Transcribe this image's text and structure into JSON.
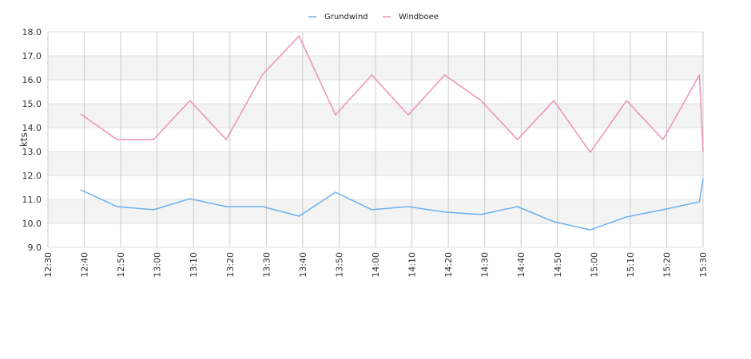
{
  "chart_data": {
    "type": "line",
    "ylabel": "kts",
    "ylim": [
      9,
      18
    ],
    "y_ticks": [
      "9.0",
      "10.0",
      "11.0",
      "12.0",
      "13.0",
      "14.0",
      "15.0",
      "16.0",
      "17.0",
      "18.0"
    ],
    "x_ticks": [
      "12:30",
      "12:40",
      "12:50",
      "13:00",
      "13:10",
      "13:20",
      "13:30",
      "13:40",
      "13:50",
      "14:00",
      "14:10",
      "14:20",
      "14:30",
      "14:40",
      "14:50",
      "15:00",
      "15:10",
      "15:20",
      "15:30"
    ],
    "x_range": [
      "12:30",
      "15:30"
    ],
    "grid": true,
    "banded_background": true,
    "legend_position": "top-center",
    "series": [
      {
        "name": "Grundwind",
        "color": "#6ab0ee",
        "x": [
          "12:39",
          "12:49",
          "12:59",
          "13:09",
          "13:19",
          "13:29",
          "13:39",
          "13:49",
          "13:59",
          "14:09",
          "14:19",
          "14:29",
          "14:39",
          "14:49",
          "14:59",
          "15:09",
          "15:19",
          "15:29",
          "15:30"
        ],
        "values": [
          11.4,
          10.7,
          10.57,
          11.03,
          10.7,
          10.7,
          10.3,
          11.3,
          10.57,
          10.7,
          10.47,
          10.37,
          10.7,
          10.07,
          9.73,
          10.27,
          10.57,
          10.9,
          11.87
        ]
      },
      {
        "name": "Windboee",
        "color": "#ee8fbb",
        "x": [
          "12:39",
          "12:49",
          "12:59",
          "13:09",
          "13:19",
          "13:29",
          "13:39",
          "13:49",
          "13:59",
          "14:09",
          "14:19",
          "14:29",
          "14:39",
          "14:49",
          "14:59",
          "15:09",
          "15:19",
          "15:29",
          "15:30"
        ],
        "values": [
          14.57,
          13.5,
          13.5,
          15.13,
          13.5,
          16.23,
          17.83,
          14.53,
          16.2,
          14.53,
          16.2,
          15.13,
          13.5,
          15.13,
          12.97,
          15.13,
          13.5,
          16.2,
          13.0
        ]
      }
    ]
  }
}
